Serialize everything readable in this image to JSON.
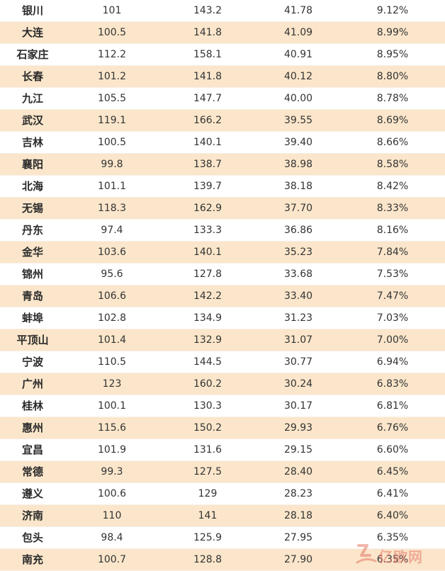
{
  "rows": [
    {
      "city": "银川",
      "c1": "101",
      "c2": "143.2",
      "c3": "41.78",
      "c4": "9.12%"
    },
    {
      "city": "大连",
      "c1": "100.5",
      "c2": "141.8",
      "c3": "41.09",
      "c4": "8.99%"
    },
    {
      "city": "石家庄",
      "c1": "112.2",
      "c2": "158.1",
      "c3": "40.91",
      "c4": "8.95%"
    },
    {
      "city": "长春",
      "c1": "101.2",
      "c2": "141.8",
      "c3": "40.12",
      "c4": "8.80%"
    },
    {
      "city": "九江",
      "c1": "105.5",
      "c2": "147.7",
      "c3": "40.00",
      "c4": "8.78%"
    },
    {
      "city": "武汉",
      "c1": "119.1",
      "c2": "166.2",
      "c3": "39.55",
      "c4": "8.69%"
    },
    {
      "city": "吉林",
      "c1": "100.5",
      "c2": "140.1",
      "c3": "39.40",
      "c4": "8.66%"
    },
    {
      "city": "襄阳",
      "c1": "99.8",
      "c2": "138.7",
      "c3": "38.98",
      "c4": "8.58%"
    },
    {
      "city": "北海",
      "c1": "101.1",
      "c2": "139.7",
      "c3": "38.18",
      "c4": "8.42%"
    },
    {
      "city": "无锡",
      "c1": "118.3",
      "c2": "162.9",
      "c3": "37.70",
      "c4": "8.33%"
    },
    {
      "city": "丹东",
      "c1": "97.4",
      "c2": "133.3",
      "c3": "36.86",
      "c4": "8.16%"
    },
    {
      "city": "金华",
      "c1": "103.6",
      "c2": "140.1",
      "c3": "35.23",
      "c4": "7.84%"
    },
    {
      "city": "锦州",
      "c1": "95.6",
      "c2": "127.8",
      "c3": "33.68",
      "c4": "7.53%"
    },
    {
      "city": "青岛",
      "c1": "106.6",
      "c2": "142.2",
      "c3": "33.40",
      "c4": "7.47%"
    },
    {
      "city": "蚌埠",
      "c1": "102.8",
      "c2": "134.9",
      "c3": "31.23",
      "c4": "7.03%"
    },
    {
      "city": "平顶山",
      "c1": "101.4",
      "c2": "132.9",
      "c3": "31.07",
      "c4": "7.00%"
    },
    {
      "city": "宁波",
      "c1": "110.5",
      "c2": "144.5",
      "c3": "30.77",
      "c4": "6.94%"
    },
    {
      "city": "广州",
      "c1": "123",
      "c2": "160.2",
      "c3": "30.24",
      "c4": "6.83%"
    },
    {
      "city": "桂林",
      "c1": "100.1",
      "c2": "130.3",
      "c3": "30.17",
      "c4": "6.81%"
    },
    {
      "city": "惠州",
      "c1": "115.6",
      "c2": "150.2",
      "c3": "29.93",
      "c4": "6.76%"
    },
    {
      "city": "宜昌",
      "c1": "101.9",
      "c2": "131.6",
      "c3": "29.15",
      "c4": "6.60%"
    },
    {
      "city": "常德",
      "c1": "99.3",
      "c2": "127.5",
      "c3": "28.40",
      "c4": "6.45%"
    },
    {
      "city": "遵义",
      "c1": "100.6",
      "c2": "129",
      "c3": "28.23",
      "c4": "6.41%"
    },
    {
      "city": "济南",
      "c1": "110",
      "c2": "141",
      "c3": "28.18",
      "c4": "6.40%"
    },
    {
      "city": "包头",
      "c1": "98.4",
      "c2": "125.9",
      "c3": "27.95",
      "c4": "6.35%"
    },
    {
      "city": "南充",
      "c1": "100.7",
      "c2": "128.8",
      "c3": "27.90",
      "c4": "6.35%"
    }
  ],
  "colors": {
    "stripe": "#fbe6cb",
    "text": "#333333",
    "watermark": "#e57b6a"
  },
  "watermark": {
    "icon": "brand-logo-icon",
    "text": "亿欧网"
  }
}
